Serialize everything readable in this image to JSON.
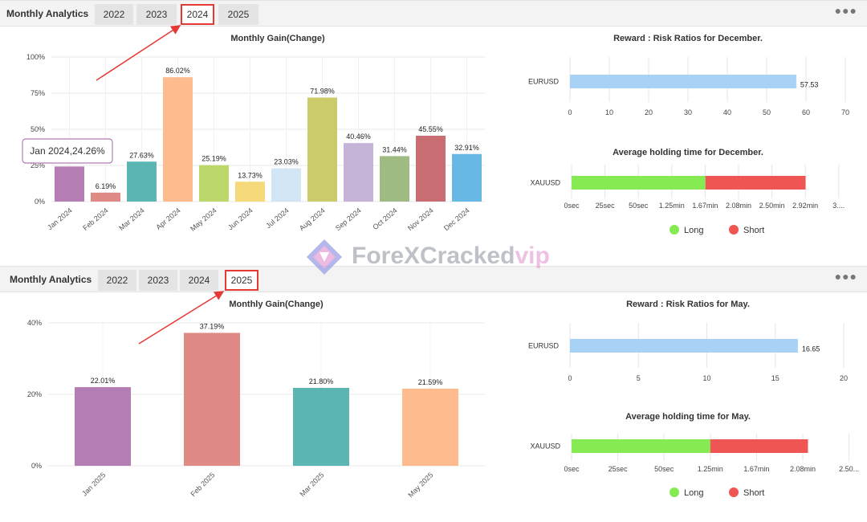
{
  "panels": [
    {
      "title": "Monthly Analytics",
      "tabs": [
        "2022",
        "2023",
        "2024",
        "2025"
      ],
      "active_tab": "2024",
      "menu_icon": "more-dots-icon",
      "gain_chart": {
        "type": "bar",
        "title": "Monthly Gain(Change)",
        "categories": [
          "Jan 2024",
          "Feb 2024",
          "Mar 2024",
          "Apr 2024",
          "May 2024",
          "Jun 2024",
          "Jul 2024",
          "Aug 2024",
          "Sep 2024",
          "Oct 2024",
          "Nov 2024",
          "Dec 2024"
        ],
        "values": [
          24.26,
          6.19,
          27.63,
          86.02,
          25.19,
          13.73,
          23.03,
          71.98,
          40.46,
          31.44,
          45.55,
          32.91
        ],
        "labels": [
          "",
          "6.19%",
          "27.63%",
          "86.02%",
          "25.19%",
          "13.73%",
          "23.03%",
          "71.98%",
          "40.46%",
          "31.44%",
          "45.55%",
          "32.91%"
        ],
        "colors": [
          "#b47db4",
          "#e08a85",
          "#5bb5b3",
          "#fdbb8e",
          "#bcd86a",
          "#f5d97a",
          "#d3e6f6",
          "#cccb6c",
          "#c5b4d8",
          "#9fbb84",
          "#c86e72",
          "#68b8e6"
        ],
        "yticks": [
          "0%",
          "25%",
          "50%",
          "75%",
          "100%"
        ],
        "ylim": [
          0,
          100
        ],
        "tooltip": "Jan 2024,24.26%"
      },
      "rr_chart": {
        "type": "bar",
        "title": "Reward : Risk Ratios for December.",
        "category": "EURUSD",
        "value": 57.53,
        "label": "57.53",
        "xticks": [
          "0",
          "10",
          "20",
          "30",
          "40",
          "50",
          "60",
          "70"
        ],
        "xlim": [
          0,
          70
        ],
        "color": "#a8d1f6"
      },
      "hold_chart": {
        "type": "bar",
        "title": "Average holding time for December.",
        "category": "XAUUSD",
        "long_min": 1.67,
        "short_min": 2.92,
        "xticks": [
          "0sec",
          "25sec",
          "50sec",
          "1.25min",
          "1.67min",
          "2.08min",
          "2.50min",
          "2.92min",
          "3...."
        ],
        "legend": [
          "Long",
          "Short"
        ],
        "colors": {
          "long": "#86ea52",
          "short": "#ef5552"
        }
      }
    },
    {
      "title": "Monthly Analytics",
      "tabs": [
        "2022",
        "2023",
        "2024",
        "2025"
      ],
      "active_tab": "2025",
      "menu_icon": "more-dots-icon",
      "gain_chart": {
        "type": "bar",
        "title": "Monthly Gain(Change)",
        "categories": [
          "Jan 2025",
          "Feb 2025",
          "Mar 2025",
          "May 2025"
        ],
        "values": [
          22.01,
          37.19,
          21.8,
          21.59
        ],
        "labels": [
          "22.01%",
          "37.19%",
          "21.80%",
          "21.59%"
        ],
        "colors": [
          "#b47db4",
          "#e08a85",
          "#5bb5b3",
          "#fdbb8e"
        ],
        "yticks": [
          "0%",
          "20%",
          "40%"
        ],
        "ylim": [
          0,
          40
        ]
      },
      "rr_chart": {
        "type": "bar",
        "title": "Reward : Risk Ratios for May.",
        "category": "EURUSD",
        "value": 16.65,
        "label": "16.65",
        "xticks": [
          "0",
          "5",
          "10",
          "15",
          "20"
        ],
        "xlim": [
          0,
          20
        ],
        "color": "#a8d1f6"
      },
      "hold_chart": {
        "type": "bar",
        "title": "Average holding time for May.",
        "category": "XAUUSD",
        "long_min": 1.25,
        "short_min": 2.13,
        "xticks": [
          "0sec",
          "25sec",
          "50sec",
          "1.25min",
          "1.67min",
          "2.08min",
          "2.50..."
        ],
        "legend": [
          "Long",
          "Short"
        ],
        "colors": {
          "long": "#86ea52",
          "short": "#ef5552"
        }
      }
    }
  ],
  "watermark": {
    "text_main": "ForeXCracked",
    "text_accent": "vip"
  }
}
